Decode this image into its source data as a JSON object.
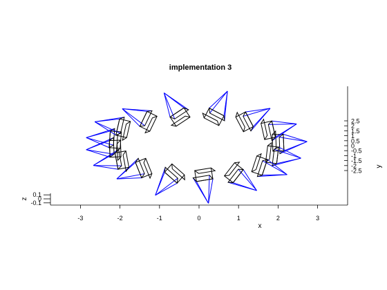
{
  "chart_data": {
    "type": "scatter",
    "title": "implementation 3",
    "xlabel": "x",
    "ylabel": "y",
    "zlabel": "z",
    "view": "3d-oblique",
    "grid": false,
    "xlim": [
      -3.9,
      3.9
    ],
    "ylim": [
      -2.9,
      2.9
    ],
    "zlim": [
      -0.12,
      0.12
    ],
    "x_ticks": [
      "-3",
      "-2",
      "-1",
      "0",
      "1",
      "2",
      "3"
    ],
    "y_ticks": [
      "2.5",
      "2",
      "1.5",
      "1",
      "0.5",
      "0",
      "-0.5",
      "-1",
      "-1.5",
      "-2",
      "-2.5"
    ],
    "z_ticks": [
      "0.1",
      "0",
      "-0.1"
    ],
    "colors": {
      "frustum": "#0000ff",
      "camera_box": "#000000",
      "axis": "#000000"
    },
    "series": [
      {
        "values": [
          [
            2.0,
            0.3
          ],
          [
            1.85,
            -0.9
          ],
          [
            1.53,
            -2.0
          ],
          [
            0.88,
            -2.72
          ],
          [
            0.12,
            -2.92
          ],
          [
            -0.62,
            -2.8
          ],
          [
            -1.4,
            -2.25
          ],
          [
            -1.95,
            -1.45
          ],
          [
            -2.12,
            -0.3
          ],
          [
            -2.12,
            0.6
          ],
          [
            -1.92,
            1.75
          ],
          [
            -1.28,
            2.45
          ],
          [
            -0.48,
            2.88
          ],
          [
            0.38,
            2.9
          ],
          [
            1.15,
            2.4
          ],
          [
            1.75,
            1.55
          ]
        ]
      }
    ]
  }
}
